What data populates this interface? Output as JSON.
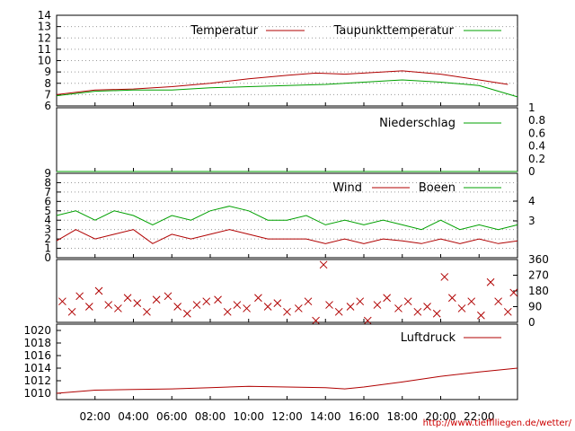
{
  "chart_data": [
    {
      "type": "line",
      "legend_position": "top-right",
      "ylim": [
        6,
        14
      ],
      "y_ticks": [
        "6",
        "7",
        "8",
        "9",
        "10",
        "11",
        "12",
        "13",
        "14"
      ],
      "grid": true,
      "series": [
        {
          "name": "Temperatur",
          "color": "#b00000",
          "points": [
            [
              0,
              7.0
            ],
            [
              2,
              7.4
            ],
            [
              4,
              7.5
            ],
            [
              6,
              7.7
            ],
            [
              8,
              8.0
            ],
            [
              10,
              8.4
            ],
            [
              12,
              8.7
            ],
            [
              13.5,
              8.9
            ],
            [
              15,
              8.8
            ],
            [
              18,
              9.1
            ],
            [
              20,
              8.8
            ],
            [
              22,
              8.3
            ],
            [
              23.5,
              7.9
            ]
          ]
        },
        {
          "name": "Taupunkttemperatur",
          "color": "#00a000",
          "points": [
            [
              0,
              6.9
            ],
            [
              2,
              7.3
            ],
            [
              4,
              7.4
            ],
            [
              6,
              7.4
            ],
            [
              8,
              7.6
            ],
            [
              10,
              7.7
            ],
            [
              12,
              7.8
            ],
            [
              14,
              7.9
            ],
            [
              16,
              8.1
            ],
            [
              18,
              8.3
            ],
            [
              20,
              8.1
            ],
            [
              22,
              7.8
            ],
            [
              24,
              6.8
            ]
          ]
        }
      ]
    },
    {
      "type": "line",
      "legend_position": "top-right",
      "ylim": [
        0,
        1
      ],
      "y_ticks": [
        "0",
        "0.2",
        "0.4",
        "0.6",
        "0.8",
        "1"
      ],
      "series": [
        {
          "name": "Niederschlag",
          "color": "#00a000",
          "points": [
            [
              0,
              0
            ],
            [
              24,
              0
            ]
          ]
        }
      ]
    },
    {
      "type": "line",
      "legend_position": "top-right",
      "ylim": [
        0,
        9
      ],
      "y_ticks": [
        "0",
        "1",
        "2",
        "3",
        "4",
        "5",
        "6",
        "7",
        "8",
        "9"
      ],
      "y2_ticks": [
        "3",
        "4"
      ],
      "grid": true,
      "series": [
        {
          "name": "Wind",
          "color": "#b00000",
          "points": [
            [
              0,
              1.8
            ],
            [
              1,
              3.0
            ],
            [
              2,
              2.0
            ],
            [
              3,
              2.5
            ],
            [
              4,
              3.0
            ],
            [
              5,
              1.5
            ],
            [
              6,
              2.5
            ],
            [
              7,
              2.0
            ],
            [
              8,
              2.5
            ],
            [
              9,
              3.0
            ],
            [
              10,
              2.5
            ],
            [
              11,
              2.0
            ],
            [
              12,
              2.0
            ],
            [
              13,
              2.0
            ],
            [
              14,
              1.5
            ],
            [
              15,
              2.0
            ],
            [
              16,
              1.5
            ],
            [
              17,
              2.0
            ],
            [
              18,
              1.8
            ],
            [
              19,
              1.5
            ],
            [
              20,
              2.0
            ],
            [
              21,
              1.5
            ],
            [
              22,
              2.0
            ],
            [
              23,
              1.5
            ],
            [
              24,
              1.8
            ]
          ]
        },
        {
          "name": "Boeen",
          "color": "#00a000",
          "points": [
            [
              0,
              4.5
            ],
            [
              1,
              5.0
            ],
            [
              2,
              4.0
            ],
            [
              3,
              5.0
            ],
            [
              4,
              4.5
            ],
            [
              5,
              3.5
            ],
            [
              6,
              4.5
            ],
            [
              7,
              4.0
            ],
            [
              8,
              5.0
            ],
            [
              9,
              5.5
            ],
            [
              10,
              5.0
            ],
            [
              11,
              4.0
            ],
            [
              12,
              4.0
            ],
            [
              13,
              4.5
            ],
            [
              14,
              3.5
            ],
            [
              15,
              4.0
            ],
            [
              16,
              3.5
            ],
            [
              17,
              4.0
            ],
            [
              18,
              3.5
            ],
            [
              19,
              3.0
            ],
            [
              20,
              4.0
            ],
            [
              21,
              3.0
            ],
            [
              22,
              3.5
            ],
            [
              23,
              3.0
            ],
            [
              24,
              3.5
            ]
          ]
        }
      ]
    },
    {
      "type": "scatter",
      "ylim": [
        0,
        360
      ],
      "y2_ticks": [
        "0",
        "90",
        "180",
        "270",
        "360"
      ],
      "series": [
        {
          "name": "",
          "color": "#b00000",
          "marker": "x",
          "points": [
            [
              0.3,
              120
            ],
            [
              0.8,
              60
            ],
            [
              1.2,
              150
            ],
            [
              1.7,
              90
            ],
            [
              2.2,
              180
            ],
            [
              2.7,
              100
            ],
            [
              3.2,
              80
            ],
            [
              3.7,
              140
            ],
            [
              4.2,
              110
            ],
            [
              4.7,
              60
            ],
            [
              5.2,
              130
            ],
            [
              5.8,
              150
            ],
            [
              6.3,
              90
            ],
            [
              6.8,
              50
            ],
            [
              7.3,
              100
            ],
            [
              7.8,
              120
            ],
            [
              8.4,
              130
            ],
            [
              8.9,
              60
            ],
            [
              9.4,
              100
            ],
            [
              9.9,
              80
            ],
            [
              10.5,
              140
            ],
            [
              11.0,
              90
            ],
            [
              11.5,
              110
            ],
            [
              12.0,
              60
            ],
            [
              12.6,
              80
            ],
            [
              13.1,
              120
            ],
            [
              13.5,
              10
            ],
            [
              13.9,
              330
            ],
            [
              14.2,
              100
            ],
            [
              14.7,
              60
            ],
            [
              15.3,
              90
            ],
            [
              15.8,
              120
            ],
            [
              16.2,
              10
            ],
            [
              16.7,
              100
            ],
            [
              17.2,
              140
            ],
            [
              17.8,
              80
            ],
            [
              18.3,
              120
            ],
            [
              18.8,
              60
            ],
            [
              19.3,
              90
            ],
            [
              19.8,
              50
            ],
            [
              20.2,
              260
            ],
            [
              20.6,
              140
            ],
            [
              21.1,
              80
            ],
            [
              21.6,
              120
            ],
            [
              22.1,
              40
            ],
            [
              22.6,
              230
            ],
            [
              23.0,
              120
            ],
            [
              23.5,
              60
            ],
            [
              23.8,
              170
            ]
          ]
        }
      ]
    },
    {
      "type": "line",
      "legend_position": "top-right",
      "ylim": [
        1009,
        1021
      ],
      "y_ticks": [
        "1010",
        "1012",
        "1014",
        "1016",
        "1018",
        "1020"
      ],
      "grid": false,
      "series": [
        {
          "name": "Luftdruck",
          "color": "#b00000",
          "points": [
            [
              0,
              1010.0
            ],
            [
              2,
              1010.5
            ],
            [
              4,
              1010.6
            ],
            [
              6,
              1010.7
            ],
            [
              8,
              1010.9
            ],
            [
              10,
              1011.1
            ],
            [
              12,
              1011.0
            ],
            [
              14,
              1010.9
            ],
            [
              15,
              1010.7
            ],
            [
              16,
              1011.0
            ],
            [
              18,
              1011.8
            ],
            [
              20,
              1012.7
            ],
            [
              22,
              1013.4
            ],
            [
              24,
              1014.0
            ]
          ]
        }
      ]
    }
  ],
  "x_axis": {
    "xlim": [
      0,
      24
    ],
    "tick_values": [
      2,
      4,
      6,
      8,
      10,
      12,
      14,
      16,
      18,
      20,
      22
    ],
    "tick_labels": [
      "02:00",
      "04:00",
      "06:00",
      "08:00",
      "10:00",
      "12:00",
      "14:00",
      "16:00",
      "18:00",
      "20:00",
      "22:00"
    ]
  },
  "footer": {
    "url": "http://www.tiefflliegen.de/wetter/",
    "url_color": "#cc0000"
  }
}
